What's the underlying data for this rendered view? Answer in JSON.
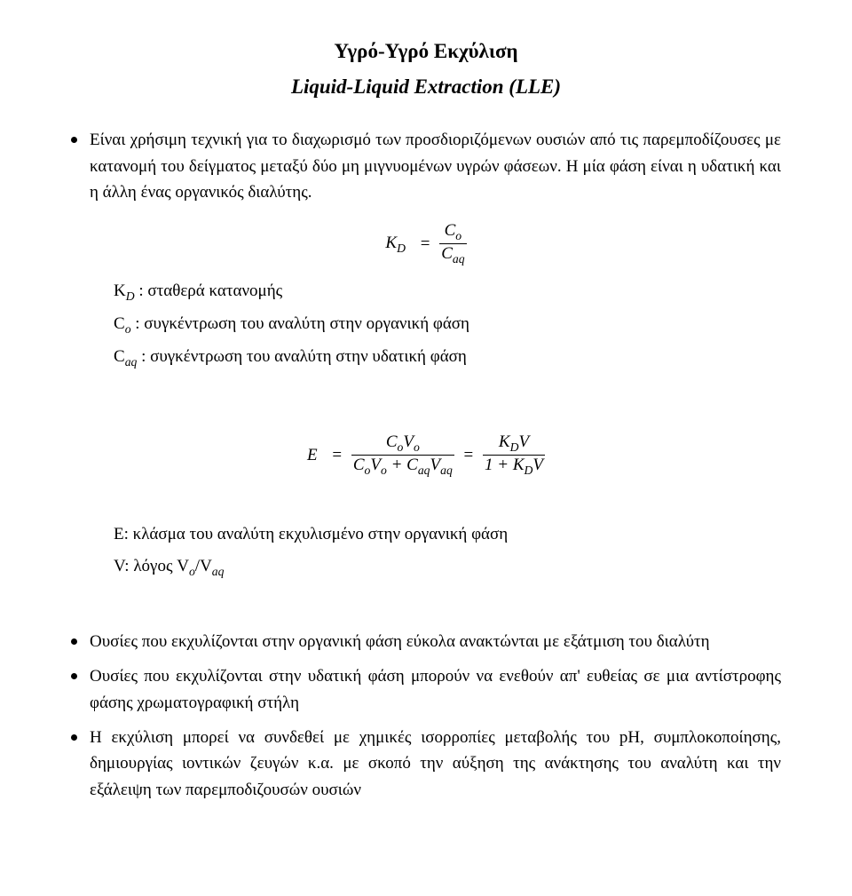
{
  "title1": "Υγρό-Υγρό Εκχύλιση",
  "title2": "Liquid-Liquid Extraction (LLE)",
  "bullets_top": [
    "Είναι χρήσιμη τεχνική για το διαχωρισμό των προσδιοριζόμενων ουσιών από τις παρεμποδίζουσες με κατανομή του δείγματος μεταξύ δύο μη μιγνυομένων υγρών φάσεων. Η μία φάση είναι η υδατική και η άλλη ένας οργανικός διαλύτης."
  ],
  "formula_kd": {
    "lhs": "K",
    "lhs_sub": "D",
    "num": "C",
    "num_sub": "o",
    "den": "C",
    "den_sub": "aq"
  },
  "definitions_kd": [
    "K<sub>D</sub> : σταθερά κατανομής",
    "C<sub>o</sub> : συγκέντρωση του αναλύτη στην οργανική φάση",
    "C<sub>aq</sub> : συγκέντρωση του αναλύτη στην υδατική φάση"
  ],
  "formula_e": {
    "lhs": "E",
    "frac1_num": "C<sub>o</sub>V<sub>o</sub>",
    "frac1_den": "C<sub>o</sub>V<sub>o</sub> + C<sub>aq</sub>V<sub>aq</sub>",
    "frac2_num": "K<sub>D</sub>V",
    "frac2_den": "1 + K<sub>D</sub>V"
  },
  "definitions_e": [
    "E: κλάσμα του αναλύτη εκχυλισμένο στην οργανική φάση",
    "V: λόγος V<sub>o</sub>/V<sub>aq</sub>"
  ],
  "bullets_bottom": [
    "Ουσίες που εκχυλίζονται στην οργανική φάση εύκολα ανακτώνται με εξάτμιση του διαλύτη",
    "Ουσίες που εκχυλίζονται στην υδατική φάση μπορούν να ενεθούν απ' ευθείας σε μια αντίστροφης φάσης χρωματογραφική στήλη",
    "Η εκχύλιση μπορεί να συνδεθεί με χημικές ισορροπίες μεταβολής του pH, συμπλοκοποίησης, δημιουργίας ιοντικών ζευγών κ.α. με σκοπό την αύξηση της ανάκτησης του αναλύτη και την εξάλειψη των παρεμποδιζουσών ουσιών"
  ]
}
